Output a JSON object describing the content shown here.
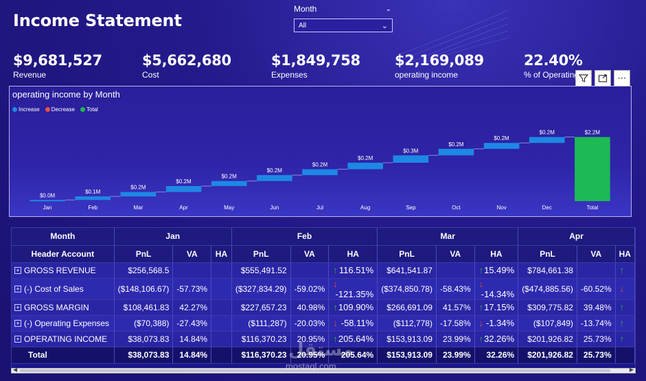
{
  "header": {
    "title": "Income Statement"
  },
  "slicer": {
    "label": "Month",
    "selected": "All"
  },
  "kpis": [
    {
      "value": "$9,681,527",
      "label": "Revenue"
    },
    {
      "value": "$5,662,680",
      "label": "Cost"
    },
    {
      "value": "$1,849,758",
      "label": "Expenses"
    },
    {
      "value": "$2,169,089",
      "label": "operating income"
    },
    {
      "value": "22.40%",
      "label": "% of Operating Income"
    }
  ],
  "toolbar": {
    "icons": [
      "filter-icon",
      "focus-mode-icon",
      "more-options-icon"
    ]
  },
  "chart_data": {
    "type": "waterfall",
    "title": "operating income by Month",
    "legend": [
      {
        "name": "Increase",
        "color": "#1e88e5"
      },
      {
        "name": "Decrease",
        "color": "#e8504a"
      },
      {
        "name": "Total",
        "color": "#1db954"
      }
    ],
    "categories": [
      "Jan",
      "Feb",
      "Mar",
      "Apr",
      "May",
      "Jun",
      "Jul",
      "Aug",
      "Sep",
      "Oct",
      "Nov",
      "Dec",
      "Total"
    ],
    "values": [
      0.04,
      0.12,
      0.15,
      0.2,
      0.17,
      0.2,
      0.2,
      0.22,
      0.25,
      0.22,
      0.2,
      0.2,
      2.17
    ],
    "labels": [
      "$0.0M",
      "$0.1M",
      "$0.2M",
      "$0.2M",
      "$0.2M",
      "$0.2M",
      "$0.2M",
      "$0.2M",
      "$0.3M",
      "$0.2M",
      "$0.2M",
      "$0.2M",
      "$2.2M"
    ],
    "ylim": [
      0,
      2.3
    ],
    "unit": "$M"
  },
  "table": {
    "month_header": "Month",
    "account_header": "Header Account",
    "months": [
      "Jan",
      "Feb",
      "Mar",
      "Apr"
    ],
    "subcols": {
      "pnl": "PnL",
      "va": "VA",
      "ha": "HA"
    },
    "rows": [
      {
        "account": "GROSS REVENUE",
        "cells": [
          {
            "pnl": "$256,568.5",
            "va": "",
            "ha": "",
            "dir": ""
          },
          {
            "pnl": "$555,491.52",
            "va": "",
            "ha": "116.51%",
            "dir": "up"
          },
          {
            "pnl": "$641,541.87",
            "va": "",
            "ha": "15.49%",
            "dir": "up"
          },
          {
            "pnl": "$784,661.38",
            "va": "",
            "ha": "",
            "dir": "up"
          }
        ]
      },
      {
        "account": "(-) Cost of Sales",
        "cells": [
          {
            "pnl": "($148,106.67)",
            "va": "-57.73%",
            "ha": "",
            "dir": ""
          },
          {
            "pnl": "($327,834.29)",
            "va": "-59.02%",
            "ha": "-121.35%",
            "dir": "down"
          },
          {
            "pnl": "($374,850.78)",
            "va": "-58.43%",
            "ha": "-14.34%",
            "dir": "down"
          },
          {
            "pnl": "($474,885.56)",
            "va": "-60.52%",
            "ha": "",
            "dir": "down"
          }
        ]
      },
      {
        "account": "GROSS MARGIN",
        "cells": [
          {
            "pnl": "$108,461.83",
            "va": "42.27%",
            "ha": "",
            "dir": ""
          },
          {
            "pnl": "$227,657.23",
            "va": "40.98%",
            "ha": "109.90%",
            "dir": "up"
          },
          {
            "pnl": "$266,691.09",
            "va": "41.57%",
            "ha": "17.15%",
            "dir": "up"
          },
          {
            "pnl": "$309,775.82",
            "va": "39.48%",
            "ha": "",
            "dir": "up"
          }
        ]
      },
      {
        "account": "(-) Operating Expenses",
        "cells": [
          {
            "pnl": "($70,388)",
            "va": "-27.43%",
            "ha": "",
            "dir": ""
          },
          {
            "pnl": "($111,287)",
            "va": "-20.03%",
            "ha": "-58.11%",
            "dir": "down"
          },
          {
            "pnl": "($112,778)",
            "va": "-17.58%",
            "ha": "-1.34%",
            "dir": "down"
          },
          {
            "pnl": "($107,849)",
            "va": "-13.74%",
            "ha": "",
            "dir": "up"
          }
        ]
      },
      {
        "account": "OPERATING INCOME",
        "cells": [
          {
            "pnl": "$38,073.83",
            "va": "14.84%",
            "ha": "",
            "dir": ""
          },
          {
            "pnl": "$116,370.23",
            "va": "20.95%",
            "ha": "205.64%",
            "dir": "up"
          },
          {
            "pnl": "$153,913.09",
            "va": "23.99%",
            "ha": "32.26%",
            "dir": "up"
          },
          {
            "pnl": "$201,926.82",
            "va": "25.73%",
            "ha": "",
            "dir": "up"
          }
        ]
      }
    ],
    "total": {
      "label": "Total",
      "cells": [
        {
          "pnl": "$38,073.83",
          "va": "14.84%",
          "ha": ""
        },
        {
          "pnl": "$116,370.23",
          "va": "20.95%",
          "ha": "205.64%"
        },
        {
          "pnl": "$153,913.09",
          "va": "23.99%",
          "ha": "32.26%"
        },
        {
          "pnl": "$201,926.82",
          "va": "25.73%",
          "ha": ""
        }
      ]
    }
  },
  "watermark": {
    "text": "مستقل",
    "sub": "mostaql.com"
  }
}
